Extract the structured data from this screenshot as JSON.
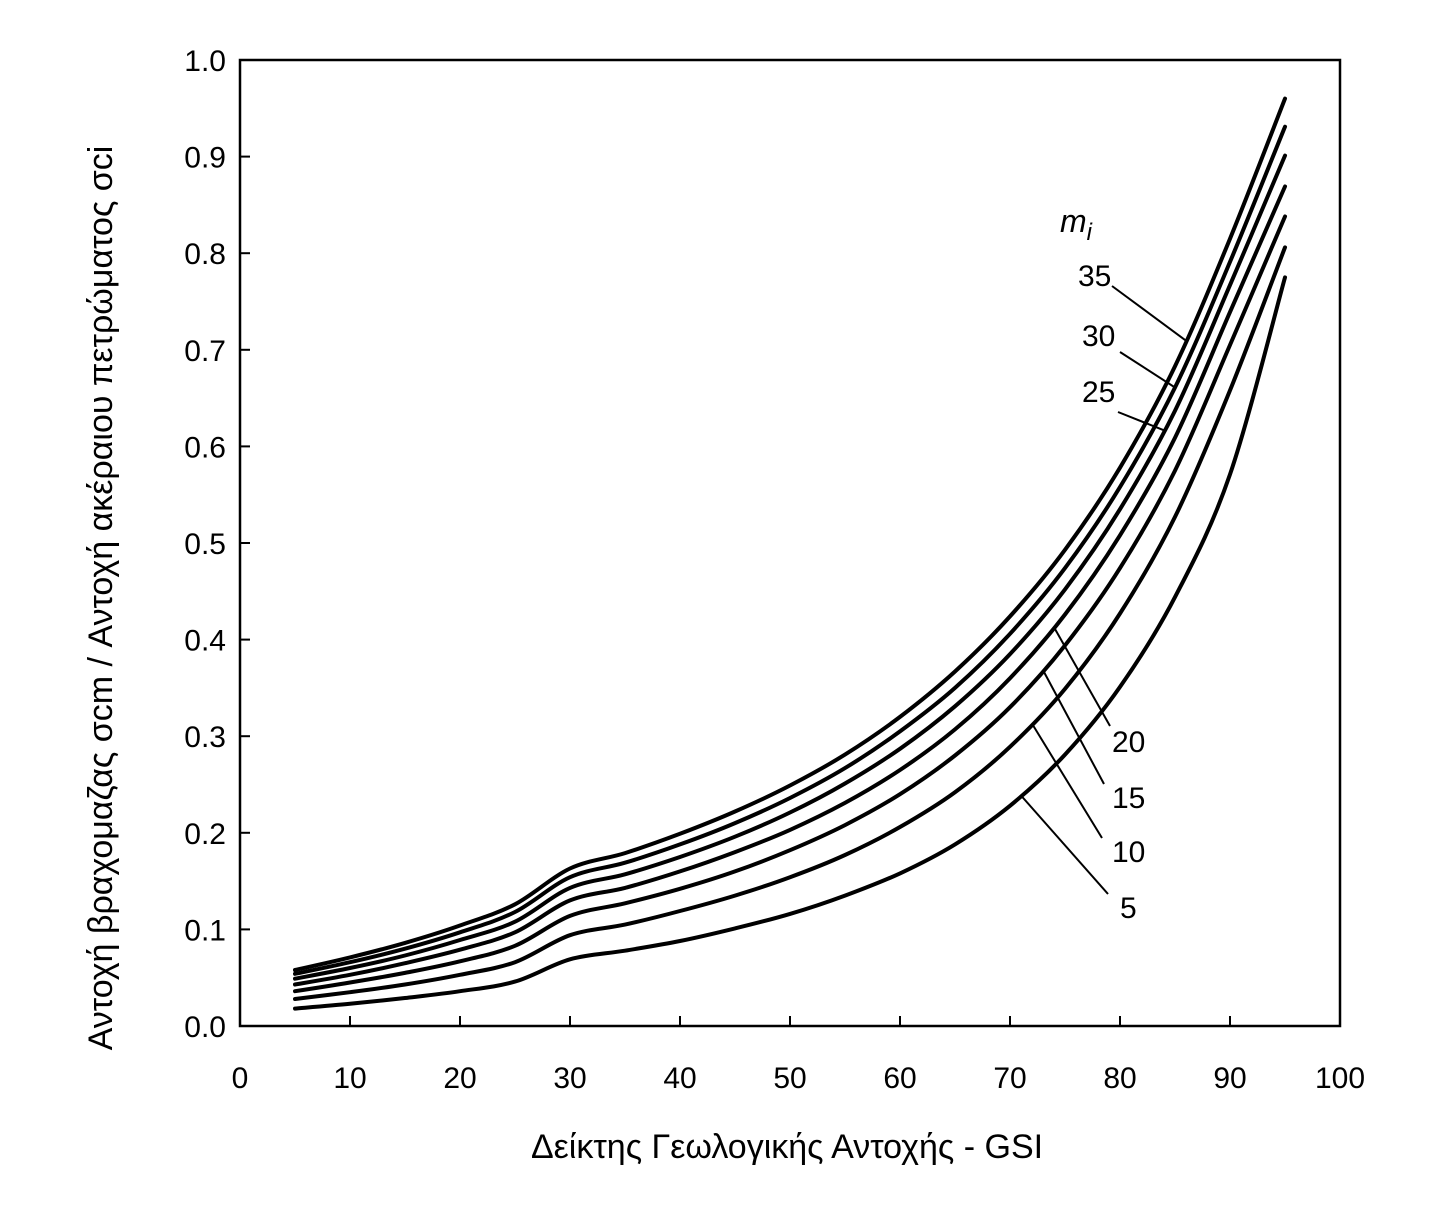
{
  "chart_data": {
    "type": "line",
    "title": "",
    "xlabel": "Δείκτης Γεωλογικής Αντοχής - GSI",
    "ylabel": "Αντοχή βραχομαζας σcm / Αντοχή ακέραιου πετρώματος σci",
    "xlim": [
      0,
      100
    ],
    "ylim": [
      0,
      1.0
    ],
    "x_ticks": [
      "0",
      "10",
      "20",
      "30",
      "40",
      "50",
      "60",
      "70",
      "80",
      "90",
      "100"
    ],
    "y_ticks": [
      "0.0",
      "0.1",
      "0.2",
      "0.3",
      "0.4",
      "0.5",
      "0.6",
      "0.7",
      "0.8",
      "0.9",
      "1.0"
    ],
    "grid": false,
    "legend_title": {
      "main": "m",
      "sub": "i"
    },
    "x": [
      5,
      10,
      15,
      20,
      25,
      30,
      35,
      40,
      45,
      50,
      55,
      60,
      65,
      70,
      75,
      80,
      85,
      90,
      95
    ],
    "series": [
      {
        "name": "5",
        "values": [
          0.018,
          0.023,
          0.029,
          0.036,
          0.046,
          0.069,
          0.078,
          0.088,
          0.101,
          0.116,
          0.135,
          0.158,
          0.188,
          0.228,
          0.281,
          0.351,
          0.444,
          0.571,
          0.775
        ]
      },
      {
        "name": "10",
        "values": [
          0.028,
          0.035,
          0.043,
          0.053,
          0.066,
          0.094,
          0.105,
          0.119,
          0.135,
          0.154,
          0.177,
          0.206,
          0.242,
          0.289,
          0.349,
          0.427,
          0.527,
          0.658,
          0.806
        ]
      },
      {
        "name": "15",
        "values": [
          0.036,
          0.045,
          0.055,
          0.067,
          0.083,
          0.114,
          0.127,
          0.142,
          0.16,
          0.182,
          0.208,
          0.24,
          0.28,
          0.33,
          0.394,
          0.474,
          0.575,
          0.705,
          0.838
        ]
      },
      {
        "name": "20",
        "values": [
          0.043,
          0.053,
          0.065,
          0.079,
          0.097,
          0.13,
          0.143,
          0.16,
          0.18,
          0.203,
          0.231,
          0.265,
          0.307,
          0.36,
          0.426,
          0.508,
          0.609,
          0.739,
          0.869
        ]
      },
      {
        "name": "25",
        "values": [
          0.049,
          0.06,
          0.073,
          0.089,
          0.108,
          0.143,
          0.157,
          0.175,
          0.196,
          0.221,
          0.251,
          0.287,
          0.331,
          0.385,
          0.452,
          0.535,
          0.637,
          0.767,
          0.901
        ]
      },
      {
        "name": "30",
        "values": [
          0.054,
          0.066,
          0.08,
          0.097,
          0.118,
          0.154,
          0.169,
          0.188,
          0.21,
          0.236,
          0.267,
          0.305,
          0.35,
          0.406,
          0.474,
          0.558,
          0.661,
          0.791,
          0.931
        ]
      },
      {
        "name": "35",
        "values": [
          0.058,
          0.071,
          0.086,
          0.104,
          0.126,
          0.163,
          0.179,
          0.199,
          0.222,
          0.249,
          0.281,
          0.32,
          0.367,
          0.424,
          0.493,
          0.578,
          0.683,
          0.815,
          0.96
        ]
      }
    ]
  }
}
